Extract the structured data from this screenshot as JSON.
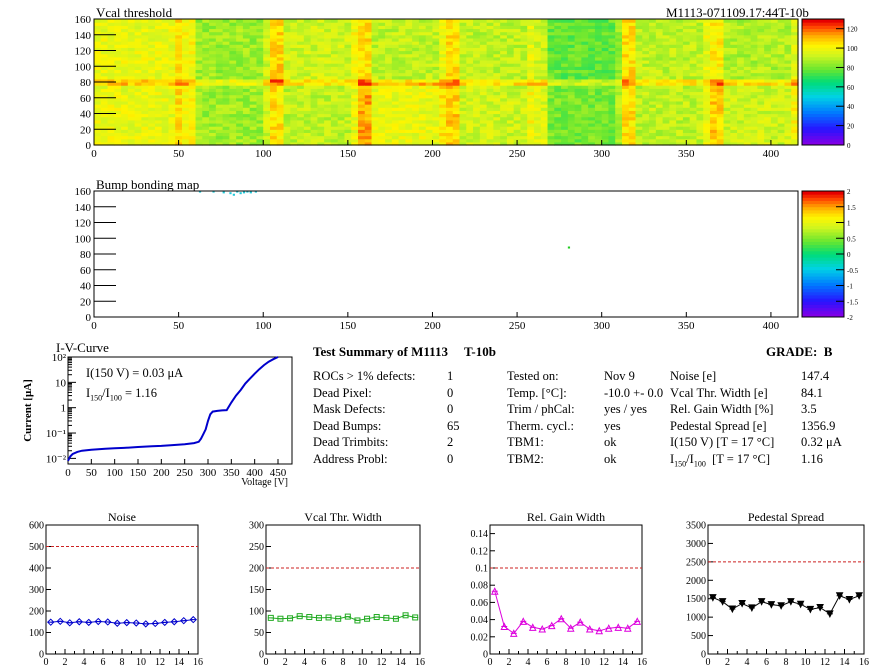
{
  "module_id": "M1113-071109.17:44T-10b",
  "chart_data": [
    {
      "id": "vcal-threshold",
      "type": "heatmap",
      "title": "Vcal threshold",
      "x_ticks": [
        "0",
        "50",
        "100",
        "150",
        "200",
        "250",
        "300",
        "350",
        "400"
      ],
      "y_ticks": [
        "0",
        "20",
        "40",
        "60",
        "80",
        "100",
        "120",
        "140",
        "160"
      ],
      "xlim": [
        0,
        416
      ],
      "ylim": [
        0,
        160
      ],
      "colorbar_ticks": [
        "0",
        "20",
        "40",
        "60",
        "80",
        "100",
        "120"
      ],
      "colorbar_range": [
        0,
        130
      ]
    },
    {
      "id": "bump-bonding-map",
      "type": "heatmap",
      "title": "Bump bonding map",
      "x_ticks": [
        "0",
        "50",
        "100",
        "150",
        "200",
        "250",
        "300",
        "350",
        "400"
      ],
      "y_ticks": [
        "0",
        "20",
        "40",
        "60",
        "80",
        "100",
        "120",
        "140",
        "160"
      ],
      "xlim": [
        0,
        416
      ],
      "ylim": [
        0,
        160
      ],
      "colorbar_ticks": [
        "-2",
        "-1.5",
        "-1",
        "-0.5",
        "0",
        "0.5",
        "1",
        "1.5",
        "2"
      ],
      "colorbar_range": [
        -2,
        2
      ]
    },
    {
      "id": "iv-curve",
      "type": "line",
      "title": "I-V-Curve",
      "xlabel": "Voltage [V]",
      "ylabel": "Current [μA]",
      "log_y": true,
      "xlim": [
        0,
        480
      ],
      "ylim": [
        0.006,
        100
      ],
      "x_ticks": [
        "0",
        "50",
        "100",
        "150",
        "200",
        "250",
        "300",
        "350",
        "400",
        "450"
      ],
      "y_ticks": [
        "10⁻²",
        "10⁻¹",
        "1",
        "10",
        "10²"
      ],
      "annotation_1": "I(150 V) = 0.03 μA",
      "annotation_2_main": "I",
      "annotation_2_sub1": "150",
      "annotation_2_slash": "/I",
      "annotation_2_sub2": "100",
      "annotation_2_value": " =  1.16",
      "x": [
        0,
        5,
        10,
        20,
        30,
        50,
        80,
        100,
        120,
        150,
        180,
        200,
        220,
        250,
        270,
        280,
        285,
        290,
        295,
        300,
        305,
        310,
        320,
        330,
        340,
        350,
        360,
        370,
        380,
        390,
        400,
        410,
        420,
        430,
        440,
        450
      ],
      "y": [
        0.008,
        0.012,
        0.015,
        0.018,
        0.02,
        0.022,
        0.024,
        0.025,
        0.026,
        0.028,
        0.03,
        0.031,
        0.033,
        0.036,
        0.04,
        0.045,
        0.06,
        0.09,
        0.14,
        0.3,
        0.55,
        0.7,
        0.75,
        0.78,
        0.8,
        1.6,
        3,
        5,
        9,
        14,
        22,
        33,
        48,
        65,
        82,
        100
      ]
    },
    {
      "id": "noise",
      "type": "line",
      "title": "Noise",
      "xlim": [
        0,
        16
      ],
      "ylim": [
        0,
        600
      ],
      "x_ticks": [
        "0",
        "2",
        "4",
        "6",
        "8",
        "10",
        "12",
        "14",
        "16"
      ],
      "y_ticks": [
        "0",
        "100",
        "200",
        "300",
        "400",
        "500",
        "600"
      ],
      "threshold": 500,
      "color": "#0000cc",
      "marker": "diamond",
      "x": [
        0.5,
        1.5,
        2.5,
        3.5,
        4.5,
        5.5,
        6.5,
        7.5,
        8.5,
        9.5,
        10.5,
        11.5,
        12.5,
        13.5,
        14.5,
        15.5
      ],
      "values": [
        148,
        152,
        145,
        150,
        147,
        151,
        149,
        143,
        146,
        144,
        140,
        142,
        147,
        150,
        155,
        160
      ]
    },
    {
      "id": "vcal-thr-width",
      "type": "line",
      "title": "Vcal Thr. Width",
      "xlim": [
        0,
        16
      ],
      "ylim": [
        0,
        300
      ],
      "x_ticks": [
        "0",
        "2",
        "4",
        "6",
        "8",
        "10",
        "12",
        "14",
        "16"
      ],
      "y_ticks": [
        "0",
        "50",
        "100",
        "150",
        "200",
        "250",
        "300"
      ],
      "threshold": 200,
      "color": "#22aa22",
      "marker": "square",
      "x": [
        0.5,
        1.5,
        2.5,
        3.5,
        4.5,
        5.5,
        6.5,
        7.5,
        8.5,
        9.5,
        10.5,
        11.5,
        12.5,
        13.5,
        14.5,
        15.5
      ],
      "values": [
        84,
        82,
        83,
        88,
        86,
        84,
        85,
        82,
        87,
        78,
        82,
        86,
        84,
        82,
        90,
        85
      ]
    },
    {
      "id": "rel-gain-width",
      "type": "line",
      "title": "Rel. Gain Width",
      "xlim": [
        0,
        16
      ],
      "ylim": [
        0,
        0.15
      ],
      "x_ticks": [
        "0",
        "2",
        "4",
        "6",
        "8",
        "10",
        "12",
        "14",
        "16"
      ],
      "y_ticks": [
        "0",
        "0.02",
        "0.04",
        "0.06",
        "0.08",
        "0.1",
        "0.12",
        "0.14"
      ],
      "threshold": 0.1,
      "color": "#dd00dd",
      "marker": "triangle",
      "x": [
        0.5,
        1.5,
        2.5,
        3.5,
        4.5,
        5.5,
        6.5,
        7.5,
        8.5,
        9.5,
        10.5,
        11.5,
        12.5,
        13.5,
        14.5,
        15.5
      ],
      "values": [
        0.073,
        0.032,
        0.024,
        0.038,
        0.031,
        0.029,
        0.033,
        0.041,
        0.03,
        0.037,
        0.029,
        0.027,
        0.03,
        0.031,
        0.03,
        0.038
      ]
    },
    {
      "id": "pedestal-spread",
      "type": "line",
      "title": "Pedestal Spread",
      "xlim": [
        0,
        16
      ],
      "ylim": [
        0,
        3500
      ],
      "x_ticks": [
        "0",
        "2",
        "4",
        "6",
        "8",
        "10",
        "12",
        "14",
        "16"
      ],
      "y_ticks": [
        "0",
        "500",
        "1000",
        "1500",
        "2000",
        "2500",
        "3000",
        "3500"
      ],
      "threshold": 2500,
      "color": "#000000",
      "marker": "triangle-down",
      "x": [
        0.5,
        1.5,
        2.5,
        3.5,
        4.5,
        5.5,
        6.5,
        7.5,
        8.5,
        9.5,
        10.5,
        11.5,
        12.5,
        13.5,
        14.5,
        15.5
      ],
      "values": [
        1530,
        1420,
        1220,
        1370,
        1250,
        1420,
        1340,
        1310,
        1420,
        1350,
        1210,
        1260,
        1090,
        1580,
        1480,
        1580
      ]
    }
  ],
  "summary": {
    "title": "Test Summary of M1113     T-10b",
    "grade": "GRADE:  B",
    "col1_labels": [
      "ROCs > 1% defects:",
      "Dead Pixel:",
      "Mask Defects:",
      "Dead Bumps:",
      "Dead Trimbits:",
      "Address Probl:"
    ],
    "col1_values": [
      "1",
      "0",
      "0",
      "65",
      "2",
      "0"
    ],
    "col2_labels": [
      "Tested on:",
      "Temp. [°C]:",
      "Trim / phCal:",
      "Therm. cycl.:",
      "TBM1:",
      "TBM2:"
    ],
    "col2_values": [
      "Nov 9",
      "-10.0 +- 0.0",
      "yes / yes",
      "yes",
      "ok",
      "ok"
    ],
    "col3_labels": [
      "Noise [e]",
      "Vcal Thr. Width [e]",
      "Rel. Gain Width [%]",
      "Pedestal Spread [e]",
      "I(150 V) [T = 17 °C]"
    ],
    "col3_label_ratio": {
      "main": "I",
      "sub1": "150",
      "slash": "/I",
      "sub2": "100",
      "rest": "  [T = 17 °C]"
    },
    "col3_values": [
      "147.4",
      "84.1",
      "3.5",
      "1356.9",
      "0.32 μA",
      "1.16"
    ]
  },
  "colors": {
    "threshold_line": "#cc2222",
    "iv_line": "#0000cc"
  }
}
